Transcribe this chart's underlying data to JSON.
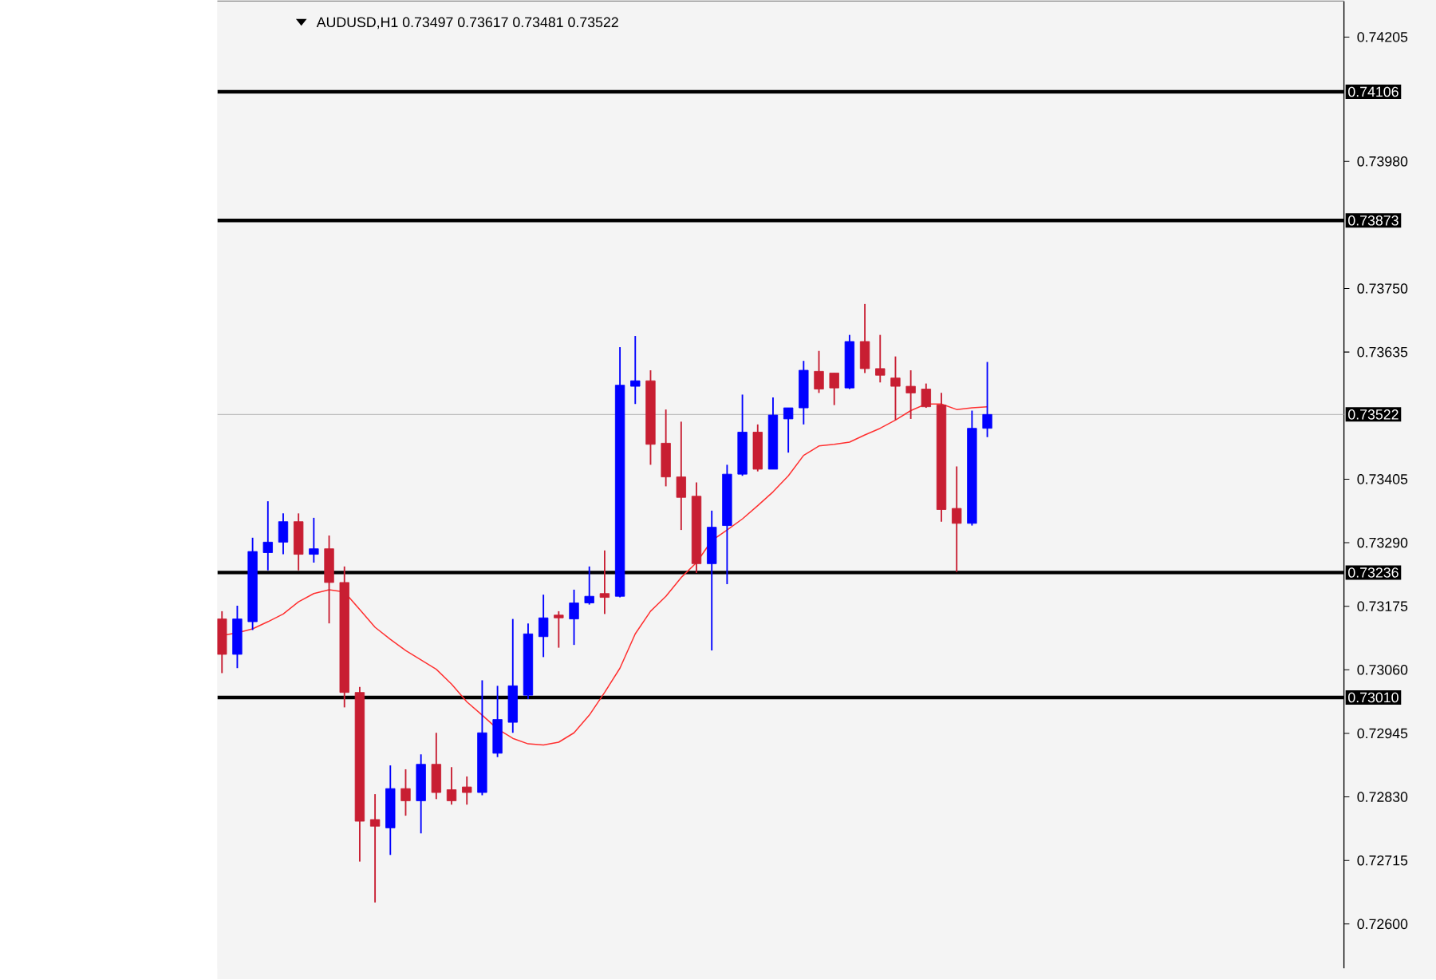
{
  "chart_data": {
    "type": "candlestick",
    "title": "AUDUSD,H1  0.73497 0.73617 0.73481 0.73522",
    "categories": [
      null,
      null,
      null,
      null,
      null,
      null,
      null,
      null,
      null,
      null,
      null,
      null,
      null,
      null,
      null,
      null,
      null,
      null,
      null,
      null,
      null,
      null,
      null,
      null,
      null,
      null,
      null,
      null,
      null,
      null,
      null,
      null,
      null,
      null,
      null,
      null,
      null,
      null,
      null,
      null,
      null,
      null,
      null,
      null,
      null,
      null,
      null,
      null,
      null,
      null,
      null
    ],
    "ohlc": [
      [
        0.73152,
        0.73166,
        0.73054,
        0.73088
      ],
      [
        0.73088,
        0.73176,
        0.73063,
        0.73152
      ],
      [
        0.73147,
        0.73299,
        0.73132,
        0.73274
      ],
      [
        0.73272,
        0.73365,
        0.7324,
        0.73291
      ],
      [
        0.73291,
        0.73343,
        0.73269,
        0.73328
      ],
      [
        0.73328,
        0.73343,
        0.7324,
        0.73269
      ],
      [
        0.73269,
        0.73335,
        0.73254,
        0.73279
      ],
      [
        0.73279,
        0.73303,
        0.73144,
        0.73218
      ],
      [
        0.73218,
        0.73247,
        0.72992,
        0.73019
      ],
      [
        0.73019,
        0.73029,
        0.72713,
        0.72786
      ],
      [
        0.72789,
        0.72835,
        0.72639,
        0.72777
      ],
      [
        0.72774,
        0.72887,
        0.72725,
        0.72845
      ],
      [
        0.72845,
        0.7288,
        0.72796,
        0.72823
      ],
      [
        0.72823,
        0.72907,
        0.72764,
        0.72889
      ],
      [
        0.72889,
        0.72946,
        0.72826,
        0.72838
      ],
      [
        0.72843,
        0.72884,
        0.72816,
        0.72823
      ],
      [
        0.72848,
        0.72867,
        0.72816,
        0.72838
      ],
      [
        0.72838,
        0.73041,
        0.72833,
        0.72946
      ],
      [
        0.72909,
        0.73031,
        0.72902,
        0.7297
      ],
      [
        0.72965,
        0.73152,
        0.72946,
        0.73031
      ],
      [
        0.73014,
        0.73144,
        0.73007,
        0.73125
      ],
      [
        0.7312,
        0.73196,
        0.73083,
        0.73154
      ],
      [
        0.73159,
        0.73166,
        0.731,
        0.73154
      ],
      [
        0.73152,
        0.73205,
        0.73105,
        0.73181
      ],
      [
        0.73181,
        0.73247,
        0.73178,
        0.73193
      ],
      [
        0.73198,
        0.73276,
        0.73161,
        0.73191
      ],
      [
        0.73193,
        0.73644,
        0.73191,
        0.73575
      ],
      [
        0.73573,
        0.73664,
        0.73541,
        0.73583
      ],
      [
        0.73583,
        0.73602,
        0.73431,
        0.73468
      ],
      [
        0.7347,
        0.73531,
        0.73392,
        0.73409
      ],
      [
        0.73409,
        0.73509,
        0.73313,
        0.73372
      ],
      [
        0.73374,
        0.73399,
        0.73235,
        0.73252
      ],
      [
        0.73252,
        0.73348,
        0.73095,
        0.73318
      ],
      [
        0.73321,
        0.73431,
        0.73215,
        0.73414
      ],
      [
        0.73414,
        0.73558,
        0.73411,
        0.7349
      ],
      [
        0.7349,
        0.73504,
        0.73419,
        0.73423
      ],
      [
        0.73423,
        0.73553,
        0.73423,
        0.73521
      ],
      [
        0.73514,
        0.73534,
        0.73453,
        0.73534
      ],
      [
        0.73534,
        0.73619,
        0.73504,
        0.73602
      ],
      [
        0.736,
        0.73637,
        0.73561,
        0.73568
      ],
      [
        0.73597,
        0.73597,
        0.73539,
        0.7357
      ],
      [
        0.7357,
        0.73666,
        0.73568,
        0.73654
      ],
      [
        0.73654,
        0.73722,
        0.73597,
        0.73605
      ],
      [
        0.73605,
        0.73666,
        0.7358,
        0.73593
      ],
      [
        0.73588,
        0.73627,
        0.73512,
        0.73573
      ],
      [
        0.73573,
        0.73602,
        0.73514,
        0.73561
      ],
      [
        0.73568,
        0.73578,
        0.73534,
        0.73536
      ],
      [
        0.73539,
        0.73561,
        0.73328,
        0.7335
      ],
      [
        0.73352,
        0.73428,
        0.73237,
        0.73325
      ],
      [
        0.73325,
        0.73529,
        0.73321,
        0.73497
      ],
      [
        0.73497,
        0.73617,
        0.73481,
        0.73522
      ]
    ],
    "colors": [
      "#c81e32",
      "#0000ff",
      "#0000ff",
      "#0000ff",
      "#0000ff",
      "#c81e32",
      "#0000ff",
      "#c81e32",
      "#c81e32",
      "#c81e32",
      "#c81e32",
      "#0000ff",
      "#c81e32",
      "#0000ff",
      "#c81e32",
      "#c81e32",
      "#c81e32",
      "#0000ff",
      "#0000ff",
      "#0000ff",
      "#0000ff",
      "#0000ff",
      "#c81e32",
      "#0000ff",
      "#0000ff",
      "#c81e32",
      "#0000ff",
      "#0000ff",
      "#c81e32",
      "#c81e32",
      "#c81e32",
      "#c81e32",
      "#0000ff",
      "#0000ff",
      "#0000ff",
      "#c81e32",
      "#0000ff",
      "#0000ff",
      "#0000ff",
      "#c81e32",
      "#c81e32",
      "#0000ff",
      "#c81e32",
      "#c81e32",
      "#c81e32",
      "#c81e32",
      "#c81e32",
      "#c81e32",
      "#c81e32",
      "#0000ff",
      "#0000ff"
    ],
    "series": [
      {
        "type": "line",
        "color": "#ff3030",
        "values": [
          0.73122,
          0.73127,
          0.73134,
          0.73147,
          0.73161,
          0.73183,
          0.73198,
          0.73205,
          0.73201,
          0.73169,
          0.73137,
          0.73115,
          0.73095,
          0.73078,
          0.73061,
          0.73034,
          0.73002,
          0.72978,
          0.72953,
          0.72936,
          0.72926,
          0.72924,
          0.72929,
          0.72946,
          0.72978,
          0.73019,
          0.73063,
          0.73125,
          0.73166,
          0.73193,
          0.73227,
          0.73254,
          0.73294,
          0.73313,
          0.73333,
          0.73357,
          0.73382,
          0.73411,
          0.73448,
          0.73465,
          0.73468,
          0.73472,
          0.73485,
          0.73497,
          0.73512,
          0.73529,
          0.73541,
          0.73541,
          0.73531,
          0.73534,
          0.73536
        ]
      }
    ],
    "ylim": [
      0.7252,
      0.7427
    ],
    "yticks": [
      0.74205,
      {
        "value": 0.7398,
        "label": "0.73980"
      },
      {
        "value": 0.7375,
        "label": "0.73750"
      },
      0.73635,
      0.73405,
      {
        "value": 0.7329,
        "label": "0.73290"
      },
      0.73175,
      {
        "value": 0.7306,
        "label": "0.73060"
      },
      0.72945,
      {
        "value": 0.7283,
        "label": "0.72830"
      },
      0.72715,
      {
        "value": 0.726,
        "label": "0.72600"
      }
    ],
    "ref_lines": [
      {
        "axis": "y",
        "value": 0.74106,
        "label": "0.74106",
        "color": "#000000"
      },
      {
        "axis": "y",
        "value": 0.73873,
        "label": "0.73873",
        "color": "#000000"
      },
      {
        "axis": "y",
        "value": 0.73522,
        "label": "0.73522",
        "color": "#c0c0c0"
      },
      {
        "axis": "y",
        "value": 0.73236,
        "label": "0.73236",
        "color": "#000000"
      },
      {
        "axis": "y",
        "value": 0.7301,
        "label": "0.73010",
        "color": "#000000"
      }
    ],
    "grid": false
  }
}
